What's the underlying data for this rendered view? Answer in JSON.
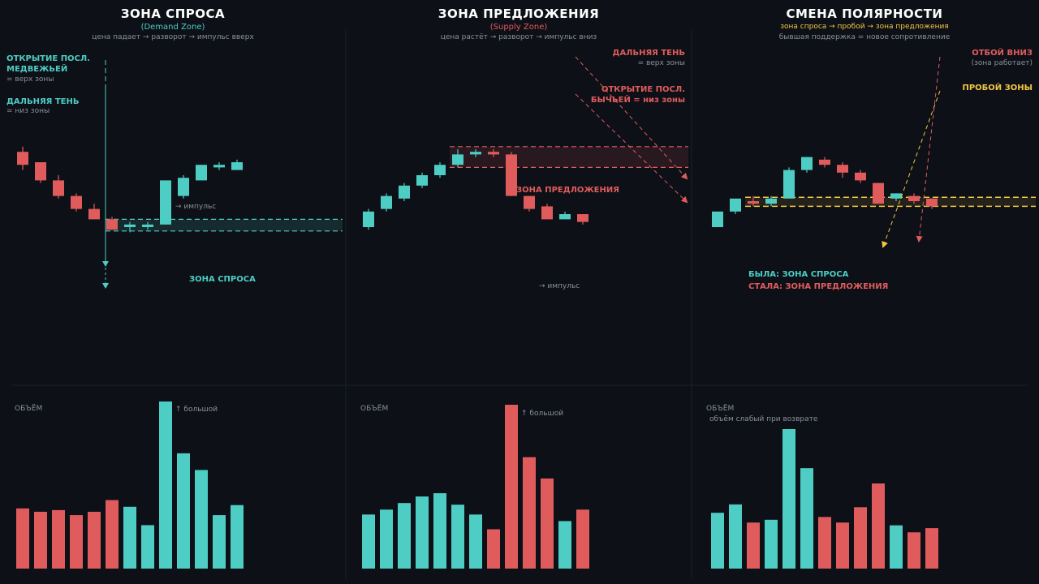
{
  "colors": {
    "bull": "#4ecdc4",
    "bear": "#e05c5c",
    "accent": "#f2c744",
    "grid": "#1c212b",
    "muted": "#8a909a"
  },
  "panels": [
    {
      "title": "ЗОНА СПРОСА",
      "subtitle_en": "(Demand Zone)",
      "subtitle_desc": "цена падает → разворот → импульс вверх",
      "zone_label": "ЗОНА СПРОСА",
      "annotations": {
        "open_label_1": "ОТКРЫТИЕ ПОСЛ.",
        "open_label_2": "МЕДВЕЖЬЕЙ",
        "open_sub": "= верх зоны",
        "wick_label": "ДАЛЬНЯЯ ТЕНЬ",
        "wick_sub": "= низ зоны",
        "impulse": "→ импульс",
        "volume_title": "ОБЪЁМ",
        "volume_note": "↑ большой"
      }
    },
    {
      "title": "ЗОНА ПРЕДЛОЖЕНИЯ",
      "subtitle_en": "(Supply Zone)",
      "subtitle_desc": "цена растёт → разворот → импульс вниз",
      "zone_label": "ЗОНА ПРЕДЛОЖЕНИЯ",
      "annotations": {
        "wick_label": "ДАЛЬНЯЯ ТЕНЬ",
        "wick_sub": "= верх зоны",
        "open_label_1": "ОТКРЫТИЕ ПОСЛ.",
        "open_label_2": "БЫЧЬЕЙ = низ зоны",
        "impulse": "→ импульс",
        "volume_title": "ОБЪЁМ",
        "volume_note": "↑ большой"
      }
    },
    {
      "title": "СМЕНА ПОЛЯРНОСТИ",
      "subtitle_en": "зона спроса → пробой → зона предложения",
      "subtitle_desc": "бывшая поддержка = новое сопротивление",
      "annotations": {
        "bounce_label": "ОТБОЙ ВНИЗ",
        "bounce_sub": "(зона работает)",
        "break_label": "ПРОБОЙ ЗОНЫ",
        "was_label": "БЫЛА: ЗОНА СПРОСА",
        "now_label": "СТАЛА: ЗОНА ПРЕДЛОЖЕНИЯ",
        "volume_title": "ОБЪЁМ",
        "volume_note": "объём слабый при возврате"
      }
    }
  ],
  "chart_data": [
    {
      "type": "candlestick",
      "title": "ЗОНА СПРОСА",
      "ylim": [
        0,
        100
      ],
      "candles": [
        {
          "o": 79,
          "h": 81,
          "l": 72,
          "c": 74
        },
        {
          "o": 75,
          "h": 75,
          "l": 67,
          "c": 68
        },
        {
          "o": 68,
          "h": 70,
          "l": 61,
          "c": 62
        },
        {
          "o": 62,
          "h": 63,
          "l": 56,
          "c": 57
        },
        {
          "o": 57,
          "h": 59,
          "l": 53,
          "c": 53
        },
        {
          "o": 53,
          "h": 54,
          "l": 49,
          "c": 49
        },
        {
          "o": 50,
          "h": 52,
          "l": 48,
          "c": 51
        },
        {
          "o": 50,
          "h": 52,
          "l": 49,
          "c": 51
        },
        {
          "o": 51,
          "h": 68,
          "l": 51,
          "c": 68
        },
        {
          "o": 62,
          "h": 70,
          "l": 61,
          "c": 69
        },
        {
          "o": 68,
          "h": 74,
          "l": 68,
          "c": 74
        },
        {
          "o": 73,
          "h": 75,
          "l": 72,
          "c": 74
        },
        {
          "o": 72,
          "h": 76,
          "l": 72,
          "c": 75
        }
      ],
      "zone": [
        48.5,
        53
      ],
      "volume": [
        36,
        34,
        35,
        32,
        34,
        41,
        37,
        26,
        100,
        69,
        59,
        32,
        38
      ]
    },
    {
      "type": "candlestick",
      "title": "ЗОНА ПРЕДЛОЖЕНИЯ",
      "ylim": [
        0,
        100
      ],
      "candles": [
        {
          "o": 50,
          "h": 57,
          "l": 49,
          "c": 56
        },
        {
          "o": 57,
          "h": 63,
          "l": 56,
          "c": 62
        },
        {
          "o": 61,
          "h": 67,
          "l": 60,
          "c": 66
        },
        {
          "o": 66,
          "h": 71,
          "l": 65,
          "c": 70
        },
        {
          "o": 70,
          "h": 75,
          "l": 69,
          "c": 74
        },
        {
          "o": 74,
          "h": 80,
          "l": 73,
          "c": 78
        },
        {
          "o": 78,
          "h": 80,
          "l": 77,
          "c": 79
        },
        {
          "o": 79,
          "h": 80,
          "l": 77,
          "c": 78
        },
        {
          "o": 78,
          "h": 79,
          "l": 62,
          "c": 62
        },
        {
          "o": 62,
          "h": 62,
          "l": 56,
          "c": 57
        },
        {
          "o": 58,
          "h": 59,
          "l": 53,
          "c": 53
        },
        {
          "o": 53,
          "h": 56,
          "l": 53,
          "c": 55
        },
        {
          "o": 55,
          "h": 55,
          "l": 51,
          "c": 52
        }
      ],
      "zone": [
        73,
        81
      ],
      "volume": [
        33,
        36,
        40,
        44,
        46,
        39,
        33,
        24,
        100,
        68,
        55,
        29,
        36
      ]
    },
    {
      "type": "candlestick",
      "title": "СМЕНА ПОЛЯРНОСТИ",
      "ylim": [
        0,
        100
      ],
      "candles": [
        {
          "o": 50,
          "h": 56,
          "l": 50,
          "c": 56
        },
        {
          "o": 56,
          "h": 61,
          "l": 55,
          "c": 61
        },
        {
          "o": 60,
          "h": 62,
          "l": 58,
          "c": 59
        },
        {
          "o": 59,
          "h": 62,
          "l": 58,
          "c": 61
        },
        {
          "o": 61,
          "h": 73,
          "l": 61,
          "c": 72
        },
        {
          "o": 72,
          "h": 77,
          "l": 71,
          "c": 77
        },
        {
          "o": 76,
          "h": 77,
          "l": 73,
          "c": 74
        },
        {
          "o": 74,
          "h": 75,
          "l": 69,
          "c": 71
        },
        {
          "o": 71,
          "h": 72,
          "l": 67,
          "c": 68
        },
        {
          "o": 67,
          "h": 67,
          "l": 59,
          "c": 59
        },
        {
          "o": 61,
          "h": 63,
          "l": 60,
          "c": 63
        },
        {
          "o": 62,
          "h": 63,
          "l": 59,
          "c": 60
        },
        {
          "o": 61,
          "h": 61,
          "l": 57,
          "c": 58
        }
      ],
      "zone": [
        58,
        61.5
      ],
      "volume": [
        40,
        46,
        33,
        35,
        100,
        72,
        37,
        33,
        44,
        61,
        31,
        26,
        29
      ]
    }
  ]
}
